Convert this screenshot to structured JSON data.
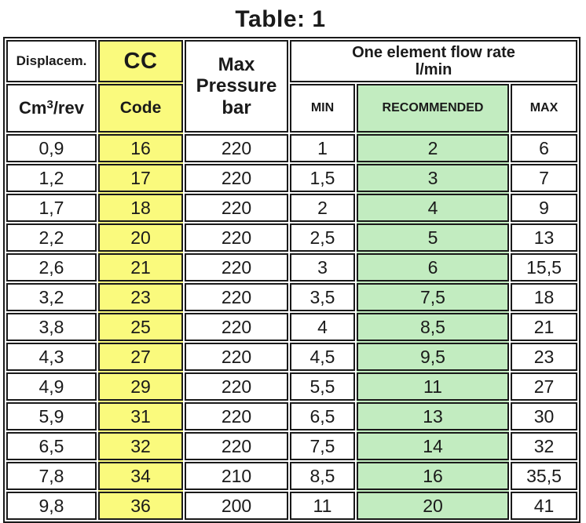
{
  "title": "Table: 1",
  "colors": {
    "yellow": "#FAFA7D",
    "green": "#C2ECC0",
    "border": "#1a1a1a"
  },
  "header": {
    "displacement_label": "Displacem.",
    "displacement_unit": {
      "base": "Cm",
      "sup": "3",
      "rest": "/rev"
    },
    "cc_label": "CC",
    "code_label": "Code",
    "max_pressure_lines": [
      "Max",
      "Pressure",
      "bar"
    ],
    "flow_rate_title": "One element flow rate",
    "flow_rate_unit": "l/min",
    "min_label": "MIN",
    "recommended_label": "RECOMMENDED",
    "max_label": "MAX"
  },
  "rows": [
    [
      "0,9",
      "16",
      "220",
      "1",
      "2",
      "6"
    ],
    [
      "1,2",
      "17",
      "220",
      "1,5",
      "3",
      "7"
    ],
    [
      "1,7",
      "18",
      "220",
      "2",
      "4",
      "9"
    ],
    [
      "2,2",
      "20",
      "220",
      "2,5",
      "5",
      "13"
    ],
    [
      "2,6",
      "21",
      "220",
      "3",
      "6",
      "15,5"
    ],
    [
      "3,2",
      "23",
      "220",
      "3,5",
      "7,5",
      "18"
    ],
    [
      "3,8",
      "25",
      "220",
      "4",
      "8,5",
      "21"
    ],
    [
      "4,3",
      "27",
      "220",
      "4,5",
      "9,5",
      "23"
    ],
    [
      "4,9",
      "29",
      "220",
      "5,5",
      "11",
      "27"
    ],
    [
      "5,9",
      "31",
      "220",
      "6,5",
      "13",
      "30"
    ],
    [
      "6,5",
      "32",
      "220",
      "7,5",
      "14",
      "32"
    ],
    [
      "7,8",
      "34",
      "210",
      "8,5",
      "16",
      "35,5"
    ],
    [
      "9,8",
      "36",
      "200",
      "11",
      "20",
      "41"
    ]
  ],
  "chart_data": {
    "type": "table",
    "title": "Table: 1",
    "columns": [
      "Displacem. Cm3/rev",
      "CC Code",
      "Max Pressure bar",
      "Flow rate MIN l/min",
      "Flow rate RECOMMENDED l/min",
      "Flow rate MAX l/min"
    ],
    "rows": [
      [
        0.9,
        16,
        220,
        1,
        2,
        6
      ],
      [
        1.2,
        17,
        220,
        1.5,
        3,
        7
      ],
      [
        1.7,
        18,
        220,
        2,
        4,
        9
      ],
      [
        2.2,
        20,
        220,
        2.5,
        5,
        13
      ],
      [
        2.6,
        21,
        220,
        3,
        6,
        15.5
      ],
      [
        3.2,
        23,
        220,
        3.5,
        7.5,
        18
      ],
      [
        3.8,
        25,
        220,
        4,
        8.5,
        21
      ],
      [
        4.3,
        27,
        220,
        4.5,
        9.5,
        23
      ],
      [
        4.9,
        29,
        220,
        5.5,
        11,
        27
      ],
      [
        5.9,
        31,
        220,
        6.5,
        13,
        30
      ],
      [
        6.5,
        32,
        220,
        7.5,
        14,
        32
      ],
      [
        7.8,
        34,
        210,
        8.5,
        16,
        35.5
      ],
      [
        9.8,
        36,
        200,
        11,
        20,
        41
      ]
    ]
  }
}
